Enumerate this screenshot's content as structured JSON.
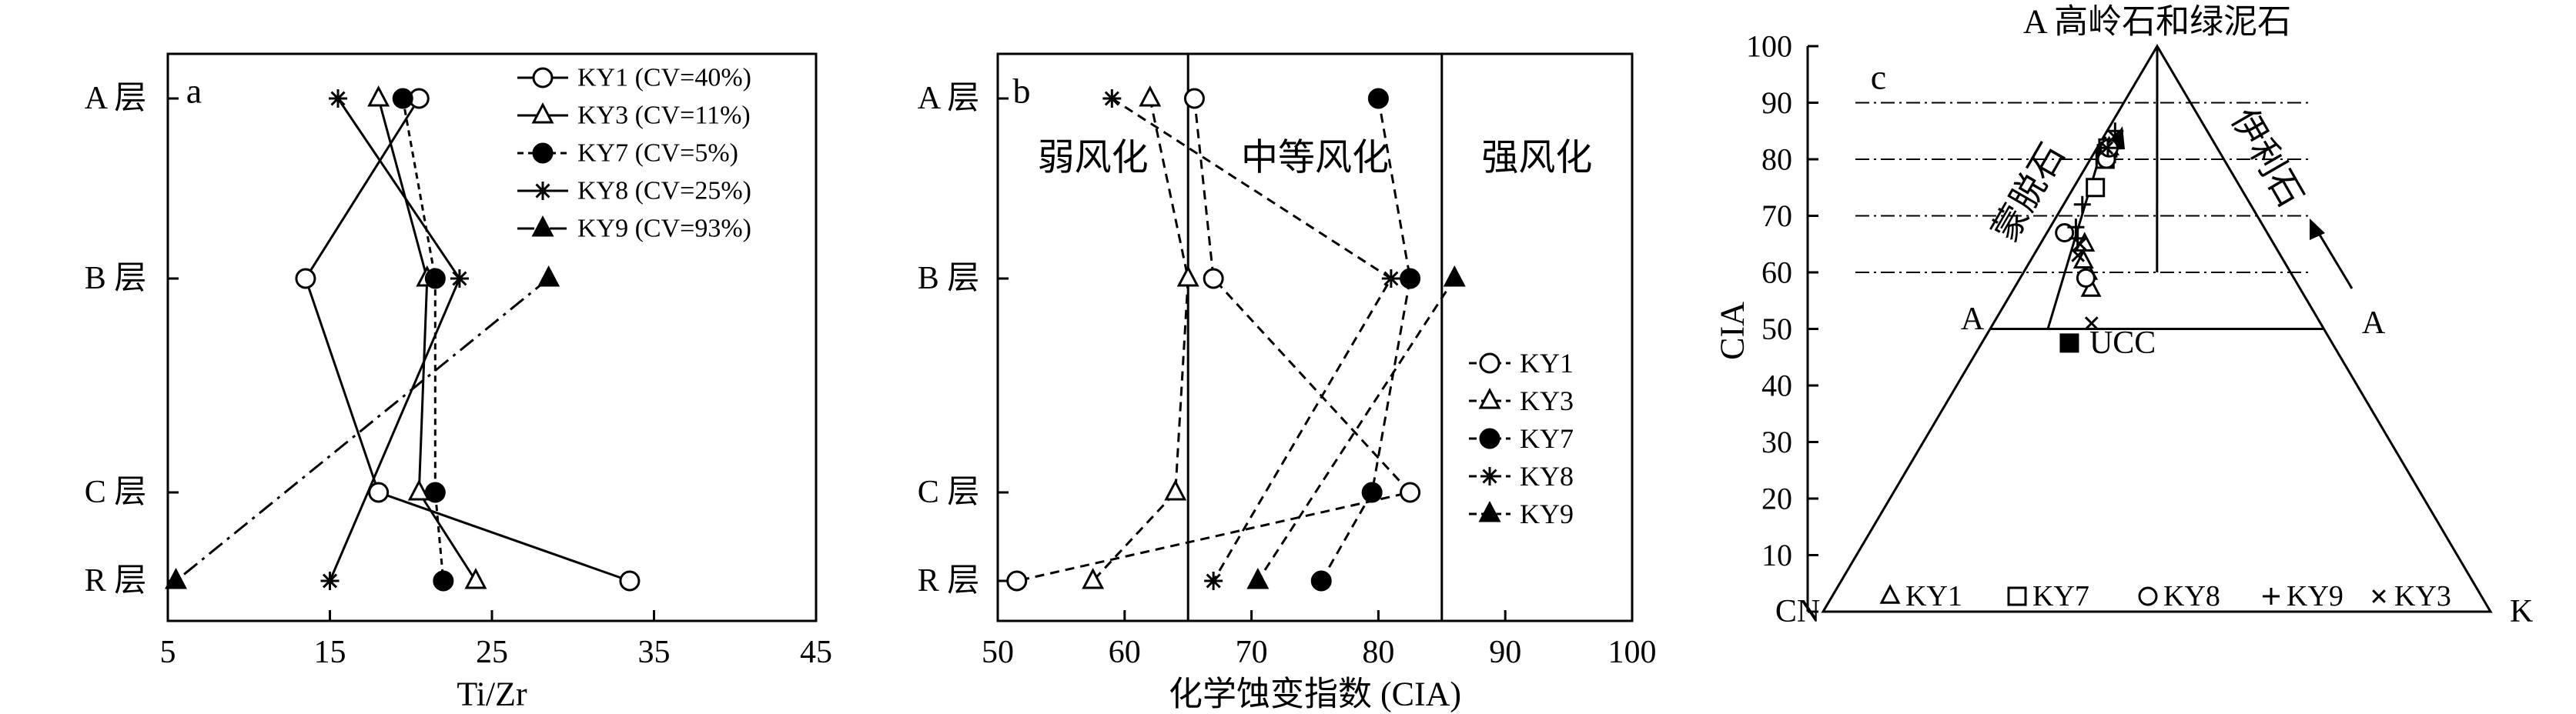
{
  "chart_data": [
    {
      "type": "line",
      "panel_label": "a",
      "xlabel": "Ti/Zr",
      "ylabel": "",
      "xlim": [
        5,
        45
      ],
      "xticks": [
        "5",
        "15",
        "25",
        "35",
        "45"
      ],
      "layer_labels": [
        "A 层",
        "B 层",
        "C 层",
        "R 层"
      ],
      "series": [
        {
          "name": "KY1 (CV=40%)",
          "values": [
            20.5,
            13.5,
            18,
            33.5
          ]
        },
        {
          "name": "KY3 (CV=11%)",
          "values": [
            18,
            21,
            20.5,
            24
          ]
        },
        {
          "name": "KY7 (CV=5%)",
          "values": [
            19.5,
            21.5,
            21.5,
            22
          ]
        },
        {
          "name": "KY8 (CV=25%)",
          "values": [
            15.5,
            23,
            null,
            15
          ]
        },
        {
          "name": "KY9 (CV=93%)",
          "values": [
            null,
            28.5,
            null,
            5.5
          ]
        }
      ]
    },
    {
      "type": "line",
      "panel_label": "b",
      "xlabel": "化学蚀变指数 (CIA)",
      "ylabel": "",
      "xlim": [
        50,
        100
      ],
      "xticks": [
        "50",
        "60",
        "70",
        "80",
        "90",
        "100"
      ],
      "layer_labels": [
        "A 层",
        "B 层",
        "C 层",
        "R 层"
      ],
      "zones": [
        "弱风化",
        "中等风化",
        "强风化"
      ],
      "zone_boundaries": [
        65,
        85
      ],
      "series": [
        {
          "name": "KY1",
          "values": [
            65.5,
            67,
            82.5,
            51.5
          ]
        },
        {
          "name": "KY3",
          "values": [
            62,
            65,
            64,
            57.5
          ]
        },
        {
          "name": "KY7",
          "values": [
            80,
            82.5,
            79.5,
            75.5
          ]
        },
        {
          "name": "KY8",
          "values": [
            59,
            81,
            null,
            67
          ]
        },
        {
          "name": "KY9",
          "values": [
            null,
            86,
            null,
            70.5
          ]
        }
      ]
    },
    {
      "type": "scatter",
      "panel_label": "c",
      "ylabel": "CIA",
      "ylim": [
        0,
        100
      ],
      "yticks": [
        "0",
        "10",
        "20",
        "30",
        "40",
        "50",
        "60",
        "70",
        "80",
        "90",
        "100"
      ],
      "vertices": {
        "top": "A 高岭石和绿泥石",
        "left": "CN",
        "right": "K"
      },
      "axis_marks": {
        "left": "A",
        "right": "A"
      },
      "mineral_labels": [
        "蒙脱石",
        "伊利石"
      ],
      "ucc_label": "UCC",
      "ucc": {
        "cia": 47.5,
        "k": 0.25
      },
      "legend": [
        "KY1",
        "KY7",
        "KY8",
        "KY9",
        "KY3"
      ],
      "points": [
        {
          "series": "KY1",
          "cia": 57,
          "k": 0.27
        },
        {
          "series": "KY1",
          "cia": 60,
          "k": 0.24
        },
        {
          "series": "KY1",
          "cia": 62,
          "k": 0.21
        },
        {
          "series": "KY1",
          "cia": 65,
          "k": 0.19
        },
        {
          "series": "KY1",
          "cia": 82,
          "k": 0.1
        },
        {
          "series": "KY7",
          "cia": 75,
          "k": 0.13
        },
        {
          "series": "KY7",
          "cia": 80,
          "k": 0.11
        },
        {
          "series": "KY7",
          "cia": 81,
          "k": 0.1
        },
        {
          "series": "KY7",
          "cia": 82,
          "k": 0.09
        },
        {
          "series": "KY8",
          "cia": 67,
          "k": 0.08
        },
        {
          "series": "KY8",
          "cia": 59,
          "k": 0.24
        },
        {
          "series": "KY8",
          "cia": 80,
          "k": 0.12
        },
        {
          "series": "KY8",
          "cia": 82,
          "k": 0.1
        },
        {
          "series": "KY9",
          "cia": 85,
          "k": 0.08
        },
        {
          "series": "KY9",
          "cia": 72,
          "k": 0.1
        },
        {
          "series": "KY9",
          "cia": 68,
          "k": 0.12
        },
        {
          "series": "KY9",
          "cia": 66,
          "k": 0.15
        },
        {
          "series": "KY9",
          "cia": 82,
          "k": 0.09
        },
        {
          "series": "KY3",
          "cia": 51,
          "k": 0.3
        },
        {
          "series": "KY3",
          "cia": 63,
          "k": 0.18
        },
        {
          "series": "KY3",
          "cia": 65,
          "k": 0.17
        },
        {
          "series": "KY3",
          "cia": 82,
          "k": 0.08
        },
        {
          "series": "KY3",
          "cia": 84,
          "k": 0.1
        }
      ]
    }
  ]
}
